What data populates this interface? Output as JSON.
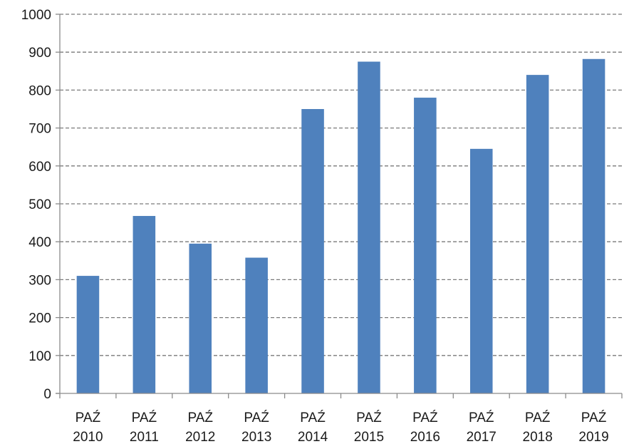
{
  "chart_data": {
    "type": "bar",
    "title": "",
    "xlabel": "",
    "ylabel": "",
    "categories": [
      [
        "PAŹ",
        "2010"
      ],
      [
        "PAŹ",
        "2011"
      ],
      [
        "PAŹ",
        "2012"
      ],
      [
        "PAŹ",
        "2013"
      ],
      [
        "PAŹ",
        "2014"
      ],
      [
        "PAŹ",
        "2015"
      ],
      [
        "PAŹ",
        "2016"
      ],
      [
        "PAŹ",
        "2017"
      ],
      [
        "PAŹ",
        "2018"
      ],
      [
        "PAŹ",
        "2019"
      ]
    ],
    "values": [
      310,
      468,
      395,
      358,
      750,
      875,
      780,
      645,
      840,
      882
    ],
    "ylim": [
      0,
      1000
    ],
    "yticks": [
      0,
      100,
      200,
      300,
      400,
      500,
      600,
      700,
      800,
      900,
      1000
    ],
    "grid": true,
    "legend": "none",
    "bar_color": "#4f81bd"
  }
}
